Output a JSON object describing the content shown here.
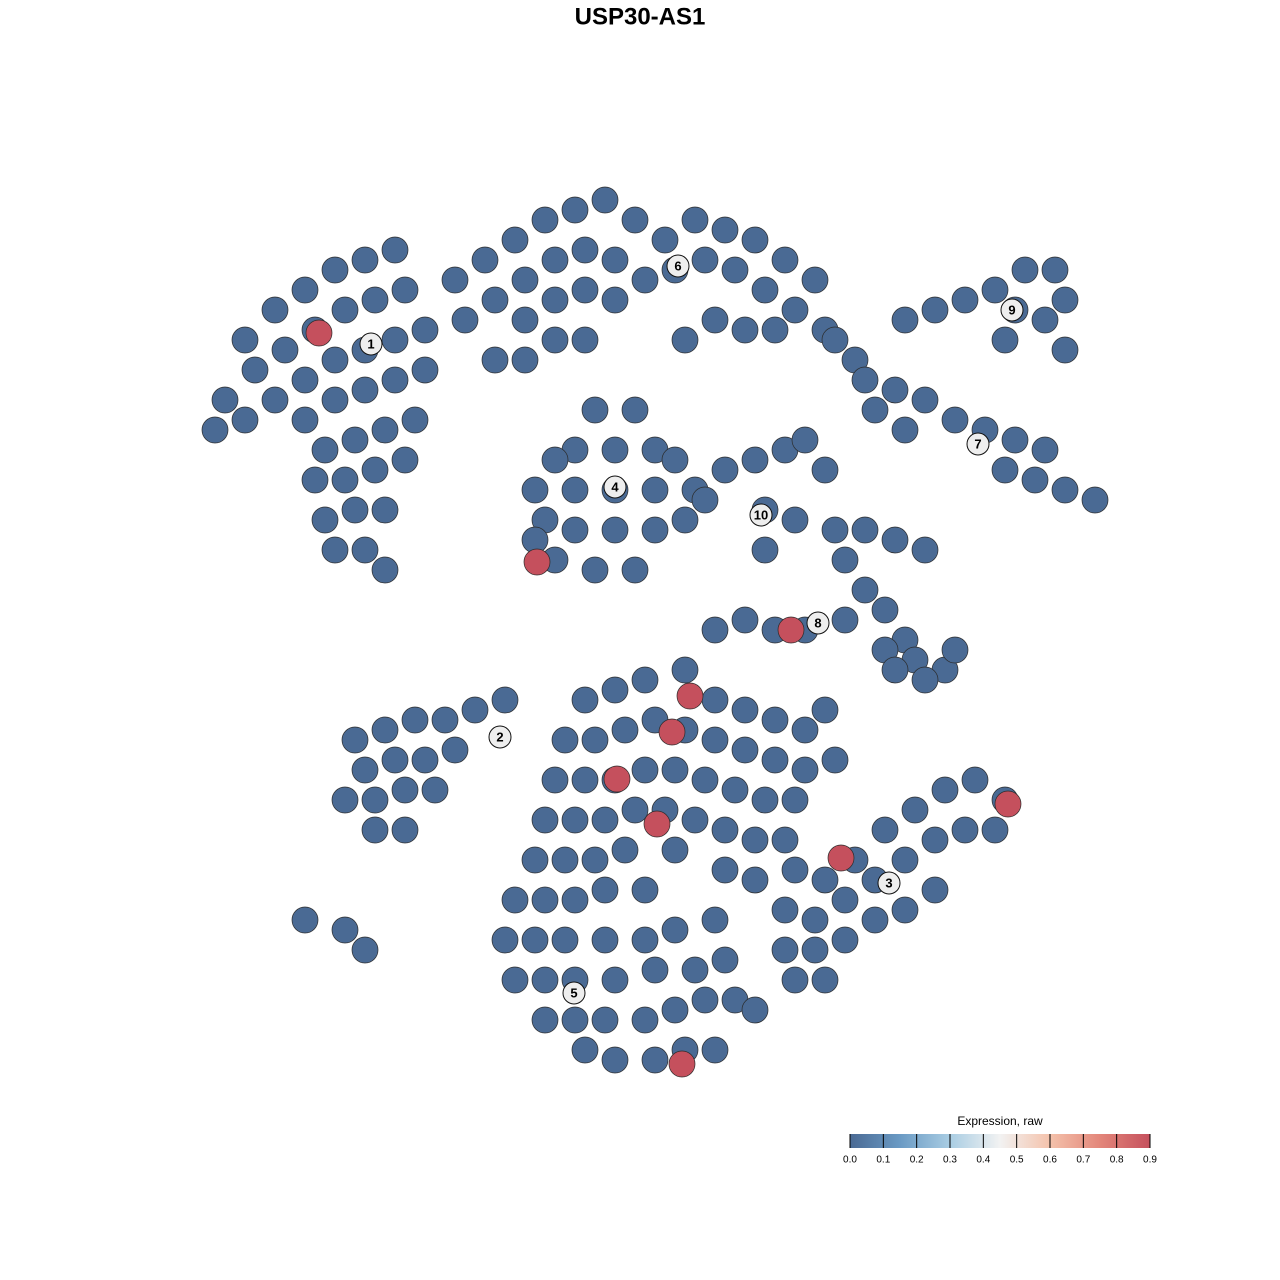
{
  "chart_data": {
    "type": "scatter",
    "title": "USP30-AS1",
    "xlim": [
      -47,
      47
    ],
    "ylim": [
      -46,
      46
    ],
    "point_colors": [
      "#4a6a94",
      "#6a9ac4",
      "#a9cde3",
      "#f2f2f2",
      "#f4c2ab",
      "#e3867a",
      "#c5505d"
    ],
    "points": [
      [
        -42,
        30,
        0
      ],
      [
        -39,
        33,
        0
      ],
      [
        -36,
        35,
        0
      ],
      [
        -33,
        37,
        0
      ],
      [
        -30,
        38,
        0
      ],
      [
        -27,
        39,
        0
      ],
      [
        -44,
        24,
        0
      ],
      [
        -41,
        27,
        0
      ],
      [
        -38,
        29,
        0
      ],
      [
        -35,
        31,
        0
      ],
      [
        -32,
        33,
        0
      ],
      [
        -29,
        34,
        0
      ],
      [
        -26,
        35,
        0
      ],
      [
        -45,
        21,
        0
      ],
      [
        -42,
        22,
        0
      ],
      [
        -39,
        24,
        0
      ],
      [
        -36,
        26,
        0
      ],
      [
        -33,
        28,
        0
      ],
      [
        -30,
        29,
        0
      ],
      [
        -27,
        30,
        0
      ],
      [
        -24,
        31,
        0
      ],
      [
        -36,
        22,
        0
      ],
      [
        -33,
        24,
        0
      ],
      [
        -30,
        25,
        0
      ],
      [
        -27,
        26,
        0
      ],
      [
        -24,
        27,
        0
      ],
      [
        -34,
        19,
        0
      ],
      [
        -31,
        20,
        0
      ],
      [
        -28,
        21,
        0
      ],
      [
        -25,
        22,
        0
      ],
      [
        -35,
        16,
        0
      ],
      [
        -32,
        16,
        0
      ],
      [
        -29,
        17,
        0
      ],
      [
        -26,
        18,
        0
      ],
      [
        -34,
        12,
        0
      ],
      [
        -31,
        13,
        0
      ],
      [
        -28,
        13,
        0
      ],
      [
        -33,
        9,
        0
      ],
      [
        -30,
        9,
        0
      ],
      [
        -28,
        7,
        0
      ],
      [
        -21,
        36,
        0
      ],
      [
        -18,
        38,
        0
      ],
      [
        -15,
        40,
        0
      ],
      [
        -12,
        42,
        0
      ],
      [
        -9,
        43,
        0
      ],
      [
        -6,
        44,
        0
      ],
      [
        -3,
        42,
        0
      ],
      [
        0,
        40,
        0
      ],
      [
        3,
        42,
        0
      ],
      [
        6,
        41,
        0
      ],
      [
        9,
        40,
        0
      ],
      [
        12,
        38,
        0
      ],
      [
        15,
        36,
        0
      ],
      [
        -20,
        32,
        0
      ],
      [
        -17,
        34,
        0
      ],
      [
        -14,
        36,
        0
      ],
      [
        -11,
        38,
        0
      ],
      [
        -8,
        39,
        0
      ],
      [
        -5,
        38,
        0
      ],
      [
        -2,
        36,
        0
      ],
      [
        1,
        37,
        0
      ],
      [
        4,
        38,
        0
      ],
      [
        7,
        37,
        0
      ],
      [
        10,
        35,
        0
      ],
      [
        13,
        33,
        0
      ],
      [
        16,
        31,
        0
      ],
      [
        -14,
        32,
        0
      ],
      [
        -11,
        34,
        0
      ],
      [
        -8,
        35,
        0
      ],
      [
        -5,
        34,
        0
      ],
      [
        -14,
        28,
        0
      ],
      [
        -11,
        30,
        0
      ],
      [
        -8,
        30,
        0
      ],
      [
        -17,
        28,
        0
      ],
      [
        2,
        30,
        0
      ],
      [
        5,
        32,
        0
      ],
      [
        8,
        31,
        0
      ],
      [
        11,
        31,
        0
      ],
      [
        17,
        30,
        0
      ],
      [
        19,
        28,
        0
      ],
      [
        -5,
        15,
        0
      ],
      [
        -9,
        15,
        0
      ],
      [
        -1,
        15,
        0
      ],
      [
        -13,
        15,
        0
      ],
      [
        3,
        15,
        0
      ],
      [
        -5,
        19,
        0
      ],
      [
        -9,
        19,
        0
      ],
      [
        -1,
        19,
        0
      ],
      [
        -7,
        23,
        0
      ],
      [
        -3,
        23,
        0
      ],
      [
        -5,
        11,
        0
      ],
      [
        -9,
        11,
        0
      ],
      [
        -1,
        11,
        0
      ],
      [
        -12,
        12,
        0
      ],
      [
        2,
        12,
        0
      ],
      [
        -7,
        7,
        0
      ],
      [
        -3,
        7,
        0
      ],
      [
        -11,
        18,
        0
      ],
      [
        1,
        18,
        0
      ],
      [
        -13,
        10,
        0
      ],
      [
        -11,
        8,
        0
      ],
      [
        6,
        17,
        0
      ],
      [
        9,
        18,
        0
      ],
      [
        12,
        19,
        0
      ],
      [
        14,
        20,
        0
      ],
      [
        10,
        13,
        0
      ],
      [
        13,
        12,
        0
      ],
      [
        10,
        9,
        0
      ],
      [
        16,
        17,
        0
      ],
      [
        4,
        14,
        0
      ],
      [
        24,
        32,
        0
      ],
      [
        27,
        33,
        0
      ],
      [
        30,
        34,
        0
      ],
      [
        33,
        35,
        0
      ],
      [
        35,
        33,
        0
      ],
      [
        38,
        32,
        0
      ],
      [
        40,
        34,
        0
      ],
      [
        36,
        37,
        0
      ],
      [
        39,
        37,
        0
      ],
      [
        34,
        30,
        0
      ],
      [
        40,
        29,
        0
      ],
      [
        20,
        26,
        0
      ],
      [
        23,
        25,
        0
      ],
      [
        26,
        24,
        0
      ],
      [
        29,
        22,
        0
      ],
      [
        32,
        21,
        0
      ],
      [
        35,
        20,
        0
      ],
      [
        38,
        19,
        0
      ],
      [
        34,
        17,
        0
      ],
      [
        37,
        16,
        0
      ],
      [
        40,
        15,
        0
      ],
      [
        43,
        14,
        0
      ],
      [
        21,
        23,
        0
      ],
      [
        24,
        21,
        0
      ],
      [
        17,
        11,
        0
      ],
      [
        20,
        11,
        0
      ],
      [
        23,
        10,
        0
      ],
      [
        26,
        9,
        0
      ],
      [
        18,
        8,
        0
      ],
      [
        20,
        5,
        0
      ],
      [
        18,
        2,
        0
      ],
      [
        22,
        3,
        0
      ],
      [
        24,
        0,
        0
      ],
      [
        25,
        -2,
        0
      ],
      [
        22,
        -1,
        0
      ],
      [
        28,
        -3,
        0
      ],
      [
        26,
        -4,
        0
      ],
      [
        23,
        -3,
        0
      ],
      [
        29,
        -1,
        0
      ],
      [
        14,
        1,
        0
      ],
      [
        11,
        1,
        0
      ],
      [
        8,
        2,
        0
      ],
      [
        5,
        1,
        0
      ],
      [
        -31,
        -10,
        0
      ],
      [
        -28,
        -9,
        0
      ],
      [
        -25,
        -8,
        0
      ],
      [
        -22,
        -8,
        0
      ],
      [
        -19,
        -7,
        0
      ],
      [
        -16,
        -6,
        0
      ],
      [
        -30,
        -13,
        0
      ],
      [
        -27,
        -12,
        0
      ],
      [
        -24,
        -12,
        0
      ],
      [
        -21,
        -11,
        0
      ],
      [
        -32,
        -16,
        0
      ],
      [
        -29,
        -16,
        0
      ],
      [
        -26,
        -15,
        0
      ],
      [
        -23,
        -15,
        0
      ],
      [
        -29,
        -19,
        0
      ],
      [
        -26,
        -19,
        0
      ],
      [
        -36,
        -28,
        0
      ],
      [
        -32,
        -29,
        0
      ],
      [
        -30,
        -31,
        0
      ],
      [
        -8,
        -6,
        0
      ],
      [
        -5,
        -5,
        0
      ],
      [
        -2,
        -4,
        0
      ],
      [
        2,
        -3,
        0
      ],
      [
        5,
        -6,
        0
      ],
      [
        8,
        -7,
        0
      ],
      [
        11,
        -8,
        0
      ],
      [
        14,
        -9,
        0
      ],
      [
        16,
        -7,
        0
      ],
      [
        -10,
        -10,
        0
      ],
      [
        -7,
        -10,
        0
      ],
      [
        -4,
        -9,
        0
      ],
      [
        -1,
        -8,
        0
      ],
      [
        2,
        -9,
        0
      ],
      [
        5,
        -10,
        0
      ],
      [
        8,
        -11,
        0
      ],
      [
        11,
        -12,
        0
      ],
      [
        14,
        -13,
        0
      ],
      [
        17,
        -12,
        0
      ],
      [
        -11,
        -14,
        0
      ],
      [
        -8,
        -14,
        0
      ],
      [
        -5,
        -14,
        0
      ],
      [
        -2,
        -13,
        0
      ],
      [
        1,
        -13,
        0
      ],
      [
        4,
        -14,
        0
      ],
      [
        7,
        -15,
        0
      ],
      [
        10,
        -16,
        0
      ],
      [
        13,
        -16,
        0
      ],
      [
        -12,
        -18,
        0
      ],
      [
        -9,
        -18,
        0
      ],
      [
        -6,
        -18,
        0
      ],
      [
        -3,
        -17,
        0
      ],
      [
        0,
        -17,
        0
      ],
      [
        3,
        -18,
        0
      ],
      [
        6,
        -19,
        0
      ],
      [
        9,
        -20,
        0
      ],
      [
        12,
        -20,
        0
      ],
      [
        -13,
        -22,
        0
      ],
      [
        -10,
        -22,
        0
      ],
      [
        -7,
        -22,
        0
      ],
      [
        -4,
        -21,
        0
      ],
      [
        1,
        -21,
        0
      ],
      [
        6,
        -23,
        0
      ],
      [
        9,
        -24,
        0
      ],
      [
        -15,
        -26,
        0
      ],
      [
        -12,
        -26,
        0
      ],
      [
        -9,
        -26,
        0
      ],
      [
        -6,
        -25,
        0
      ],
      [
        -2,
        -25,
        0
      ],
      [
        -16,
        -30,
        0
      ],
      [
        -13,
        -30,
        0
      ],
      [
        -10,
        -30,
        0
      ],
      [
        -6,
        -30,
        0
      ],
      [
        -2,
        -30,
        0
      ],
      [
        1,
        -29,
        0
      ],
      [
        5,
        -28,
        0
      ],
      [
        -15,
        -34,
        0
      ],
      [
        -12,
        -34,
        0
      ],
      [
        -9,
        -34,
        0
      ],
      [
        -5,
        -34,
        0
      ],
      [
        -1,
        -33,
        0
      ],
      [
        3,
        -33,
        0
      ],
      [
        6,
        -32,
        0
      ],
      [
        -12,
        -38,
        0
      ],
      [
        -9,
        -38,
        0
      ],
      [
        -6,
        -38,
        0
      ],
      [
        -2,
        -38,
        0
      ],
      [
        1,
        -37,
        0
      ],
      [
        4,
        -36,
        0
      ],
      [
        7,
        -36,
        0
      ],
      [
        9,
        -37,
        0
      ],
      [
        -8,
        -41,
        0
      ],
      [
        -5,
        -42,
        0
      ],
      [
        -1,
        -42,
        0
      ],
      [
        2,
        -41,
        0
      ],
      [
        5,
        -41,
        0
      ],
      [
        13,
        -23,
        0
      ],
      [
        16,
        -24,
        0
      ],
      [
        19,
        -22,
        0
      ],
      [
        22,
        -19,
        0
      ],
      [
        25,
        -17,
        0
      ],
      [
        28,
        -15,
        0
      ],
      [
        31,
        -14,
        0
      ],
      [
        34,
        -16,
        0
      ],
      [
        12,
        -27,
        0
      ],
      [
        15,
        -28,
        0
      ],
      [
        18,
        -26,
        0
      ],
      [
        21,
        -24,
        0
      ],
      [
        24,
        -22,
        0
      ],
      [
        27,
        -20,
        0
      ],
      [
        30,
        -19,
        0
      ],
      [
        33,
        -19,
        0
      ],
      [
        12,
        -31,
        0
      ],
      [
        15,
        -31,
        0
      ],
      [
        18,
        -30,
        0
      ],
      [
        21,
        -28,
        0
      ],
      [
        24,
        -27,
        0
      ],
      [
        27,
        -25,
        0
      ],
      [
        13,
        -34,
        0
      ],
      [
        16,
        -34,
        0
      ],
      [
        -34.6,
        30.7,
        0.9
      ],
      [
        -12.8,
        7.8,
        0.9
      ],
      [
        12.6,
        1.0,
        0.9
      ],
      [
        2.5,
        -5.6,
        0.9
      ],
      [
        0.7,
        -9.2,
        0.9
      ],
      [
        -4.8,
        -13.9,
        0.9
      ],
      [
        -0.8,
        -18.4,
        0.9
      ],
      [
        17.6,
        -21.8,
        0.9
      ],
      [
        34.3,
        -16.4,
        0.9
      ],
      [
        1.7,
        -42.4,
        0.9
      ]
    ],
    "cluster_labels": [
      {
        "label": "1",
        "x": -29.4,
        "y": 29.6
      },
      {
        "label": "2",
        "x": -16.5,
        "y": -9.7
      },
      {
        "label": "3",
        "x": 22.4,
        "y": -24.3
      },
      {
        "label": "4",
        "x": -5,
        "y": 15.3
      },
      {
        "label": "5",
        "x": -9.1,
        "y": -35.3
      },
      {
        "label": "6",
        "x": 1.3,
        "y": 37.4
      },
      {
        "label": "7",
        "x": 31.3,
        "y": 19.6
      },
      {
        "label": "8",
        "x": 15.3,
        "y": 1.7
      },
      {
        "label": "9",
        "x": 34.7,
        "y": 33
      },
      {
        "label": "10",
        "x": 9.6,
        "y": 12.5
      }
    ],
    "colorbar": {
      "title": "Expression, raw",
      "lim": [
        0,
        0.9
      ],
      "ticks": [
        {
          "value": 0,
          "label": "0.0"
        },
        0.1,
        0.2,
        0.3,
        0.4,
        0.5,
        0.6,
        0.7,
        0.8,
        0.9
      ]
    }
  }
}
